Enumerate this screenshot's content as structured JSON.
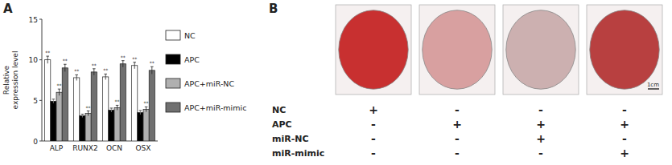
{
  "chart_data": [
    {
      "type": "bar",
      "title": "A",
      "y_label": "Relative\nexpression level",
      "categories": [
        "ALP",
        "RUNX2",
        "OCN",
        "OSX"
      ],
      "series": [
        {
          "name": "NC",
          "color": "white",
          "values": [
            10.0,
            7.8,
            7.9,
            9.3
          ],
          "errors": [
            0.45,
            0.35,
            0.35,
            0.4
          ],
          "annotations": [
            "**",
            "**",
            "**",
            "**"
          ]
        },
        {
          "name": "APC",
          "color": "black",
          "values": [
            4.9,
            3.1,
            3.8,
            3.5
          ],
          "errors": [
            0.25,
            0.2,
            0.25,
            0.25
          ]
        },
        {
          "name": "APC+miR-NC",
          "color": "#b0b0b0",
          "values": [
            6.0,
            3.4,
            4.1,
            3.9
          ],
          "errors": [
            0.4,
            0.3,
            0.3,
            0.3
          ],
          "annotations": [
            "**",
            "**",
            "**",
            "**"
          ]
        },
        {
          "name": "APC+miR-mimic",
          "color": "#707070",
          "values": [
            9.0,
            8.5,
            9.5,
            8.7
          ],
          "errors": [
            0.45,
            0.4,
            0.4,
            0.45
          ],
          "annotations": [
            "**",
            "**",
            "**",
            "**"
          ]
        }
      ],
      "ylim": [
        0,
        15
      ],
      "yticks": [
        0,
        5,
        10,
        15
      ],
      "grid": false,
      "legend": "right"
    },
    {
      "type": "table",
      "title": "B",
      "rows": [
        "NC",
        "APC",
        "miR-NC",
        "miR-mimic"
      ],
      "cells": [
        [
          "+",
          "-",
          "-",
          "-"
        ],
        [
          "-",
          "+",
          "+",
          "+"
        ],
        [
          "-",
          "-",
          "+",
          "-"
        ],
        [
          "-",
          "-",
          "-",
          "+"
        ]
      ],
      "colors": [
        "#c83030",
        "#d8a0a0",
        "#ccb0b0",
        "#b84040"
      ],
      "annotations": [
        "1cm"
      ]
    }
  ]
}
